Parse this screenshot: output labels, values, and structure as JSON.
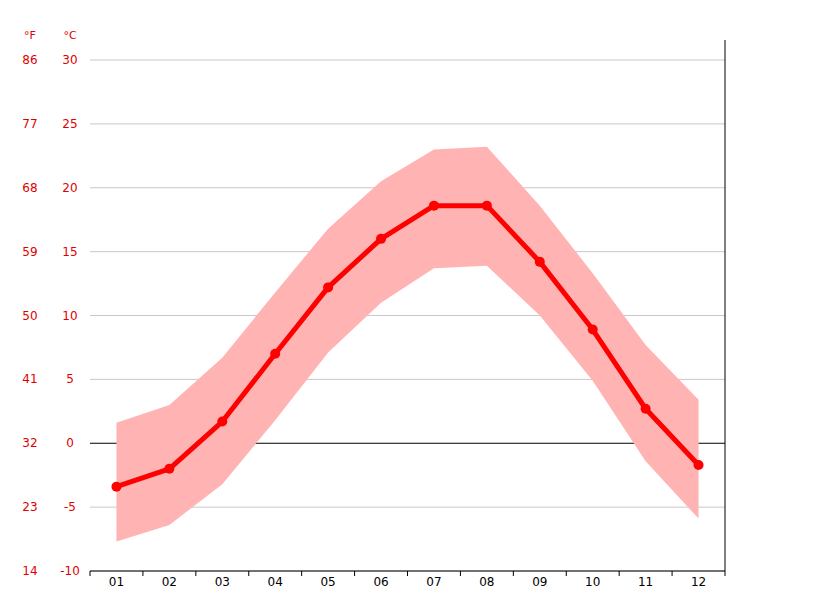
{
  "chart_data": {
    "type": "line",
    "categories": [
      "01",
      "02",
      "03",
      "04",
      "05",
      "06",
      "07",
      "08",
      "09",
      "10",
      "11",
      "12"
    ],
    "series": [
      {
        "type": "range",
        "color": "#ffb3b3",
        "values": [
          1.6,
          3.0,
          6.7,
          11.8,
          16.8,
          20.5,
          23.0,
          23.2,
          18.6,
          13.3,
          7.7,
          3.4
        ],
        "lower": [
          -7.7,
          -6.4,
          -3.2,
          1.8,
          7.1,
          11.0,
          13.7,
          13.9,
          10.0,
          4.9,
          -1.4,
          -5.9
        ]
      },
      {
        "type": "line",
        "color": "#ff0000",
        "marker": "circle",
        "values": [
          -3.4,
          -2.0,
          1.7,
          7.0,
          12.2,
          16.0,
          18.6,
          18.6,
          14.2,
          8.9,
          2.7,
          -1.7
        ]
      }
    ],
    "y_label": "°C",
    "ylim": [
      -10,
      30
    ],
    "yticks": [
      -10,
      -5,
      0,
      5,
      10,
      15,
      20,
      25,
      30
    ],
    "y2_label": "°F",
    "y2lim": [
      14,
      86
    ],
    "y2ticks": [
      14,
      23,
      32,
      41,
      50,
      59,
      68,
      77,
      86
    ],
    "grid": true
  }
}
